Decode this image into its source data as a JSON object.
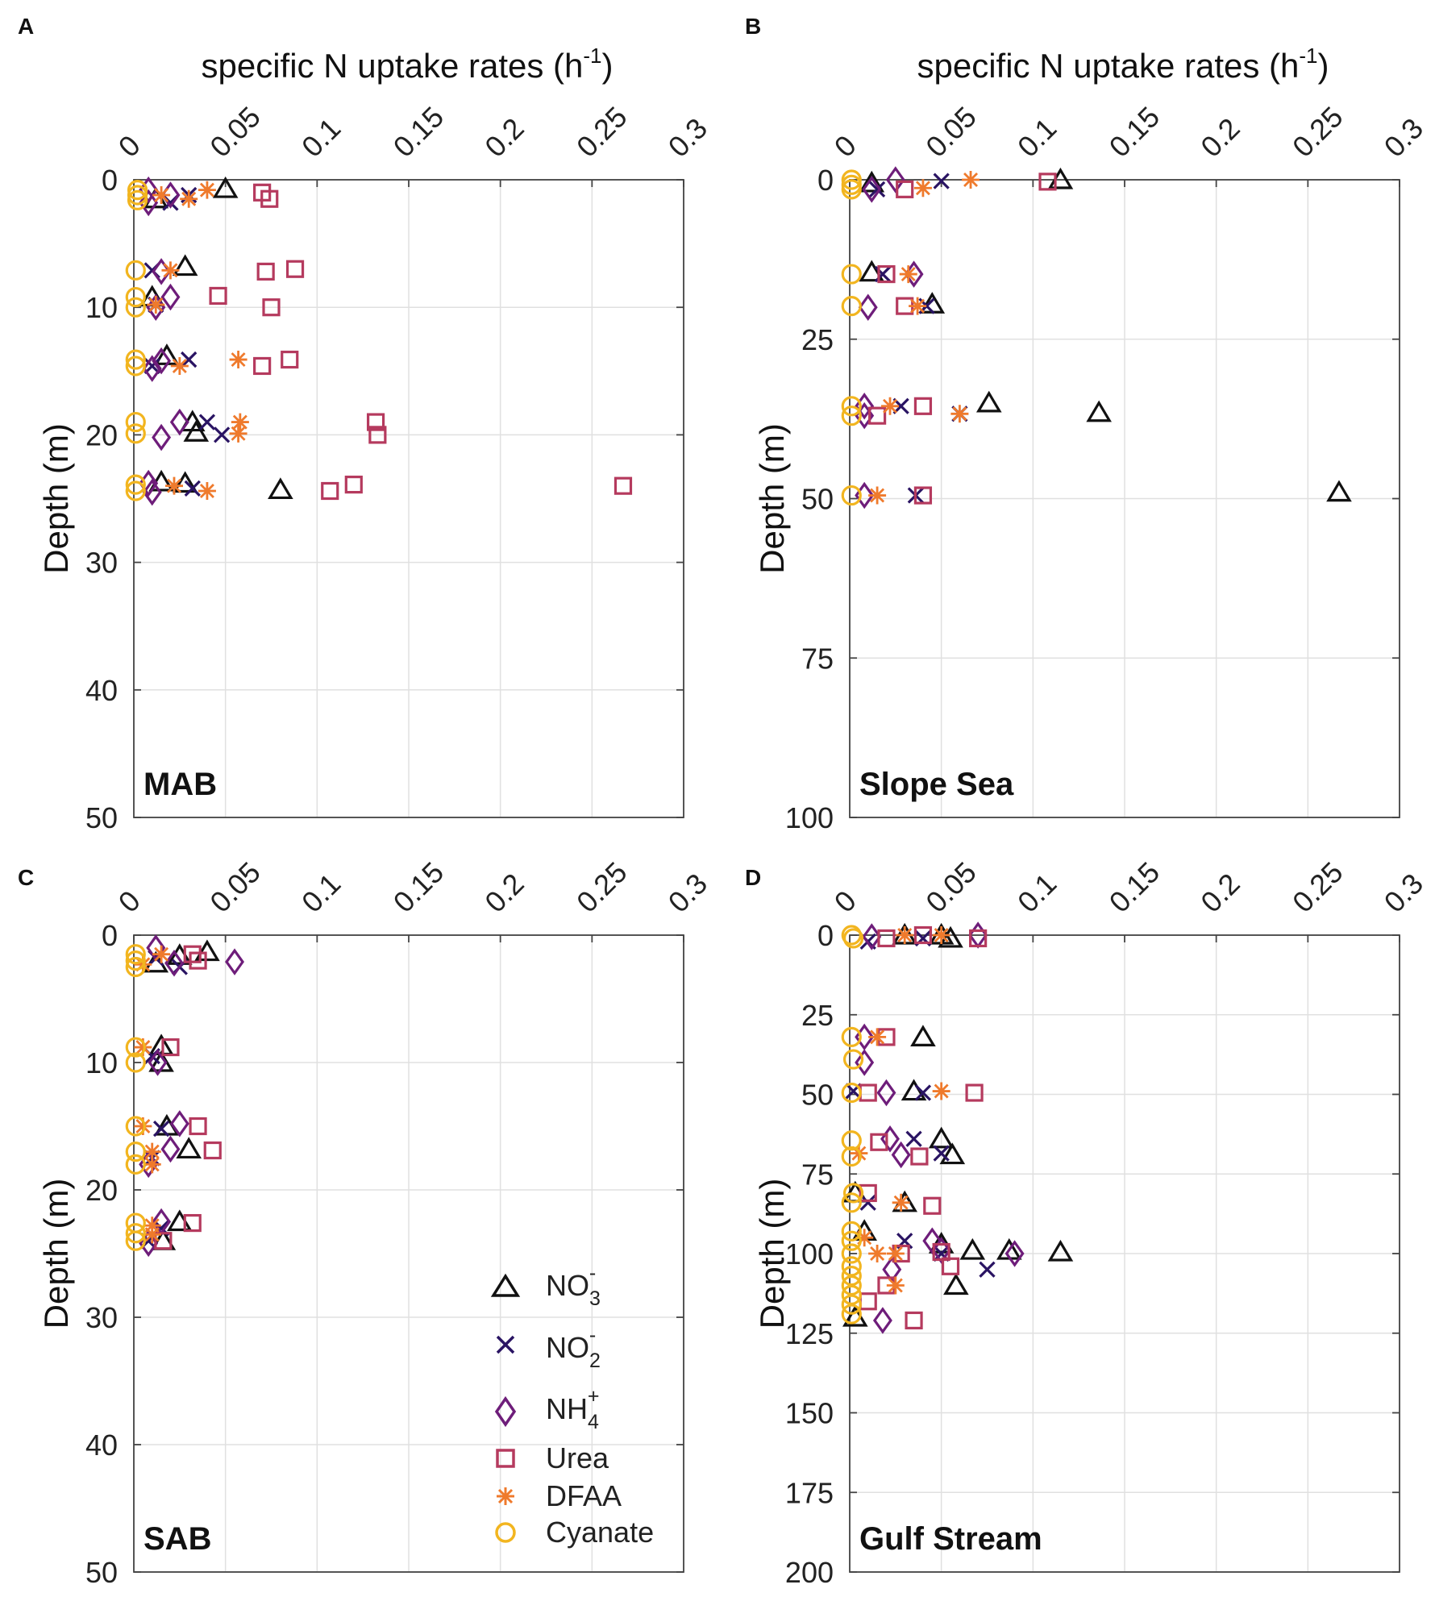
{
  "figure": {
    "x_axis_title": "specific N uptake rates (h",
    "x_axis_sup": "-1",
    "x_axis_close": ")",
    "y_axis_title": "Depth (m)"
  },
  "legend": {
    "items": [
      {
        "key": "no3",
        "base": "NO",
        "sub": "3",
        "sup": "-"
      },
      {
        "key": "no2",
        "base": "NO",
        "sub": "2",
        "sup": "-"
      },
      {
        "key": "nh4",
        "base": "NH",
        "sub": "4",
        "sup": "+"
      },
      {
        "key": "urea",
        "base": "Urea",
        "sub": "",
        "sup": ""
      },
      {
        "key": "dfaa",
        "base": "DFAA",
        "sub": "",
        "sup": ""
      },
      {
        "key": "cyanate",
        "base": "Cyanate",
        "sub": "",
        "sup": ""
      }
    ]
  },
  "colors": {
    "no3": "#111111",
    "no2": "#2a1463",
    "nh4": "#6e1d7a",
    "urea": "#b53a5e",
    "dfaa": "#ef7a2c",
    "cyanate": "#f2b51f",
    "grid": "#e0e0e0",
    "axis": "#444444"
  },
  "chart_data": [
    {
      "panel": "A",
      "region": "MAB",
      "type": "scatter",
      "xlabel": "specific N uptake rates (h-1)",
      "ylabel": "Depth (m)",
      "xlim": [
        0,
        0.3
      ],
      "ylim": [
        0,
        50
      ],
      "xticks": [
        0,
        0.05,
        0.1,
        0.15,
        0.2,
        0.25,
        0.3
      ],
      "xticklabels": [
        "0",
        "0.05",
        "0.1",
        "0.15",
        "0.2",
        "0.25",
        "0.3"
      ],
      "yticks": [
        0,
        10,
        20,
        30,
        40,
        50
      ],
      "yticklabels": [
        "0",
        "10",
        "20",
        "30",
        "40",
        "50"
      ],
      "series": {
        "no3": [
          [
            0.05,
            0.7
          ],
          [
            0.012,
            1.5
          ],
          [
            0.028,
            6.8
          ],
          [
            0.01,
            9.2
          ],
          [
            0.018,
            13.8
          ],
          [
            0.032,
            19
          ],
          [
            0.034,
            19.8
          ],
          [
            0.015,
            23.7
          ],
          [
            0.028,
            23.8
          ],
          [
            0.08,
            24.3
          ]
        ],
        "no2": [
          [
            0.03,
            1.2
          ],
          [
            0.02,
            1.8
          ],
          [
            0.01,
            7.1
          ],
          [
            0.012,
            9.8
          ],
          [
            0.03,
            14.1
          ],
          [
            0.01,
            14.6
          ],
          [
            0.04,
            19
          ],
          [
            0.048,
            20
          ],
          [
            0.032,
            24.2
          ]
        ],
        "nh4": [
          [
            0.008,
            0.8
          ],
          [
            0.02,
            1.2
          ],
          [
            0.008,
            1.8
          ],
          [
            0.015,
            7.2
          ],
          [
            0.02,
            9.2
          ],
          [
            0.012,
            10
          ],
          [
            0.015,
            14.2
          ],
          [
            0.01,
            14.8
          ],
          [
            0.025,
            19
          ],
          [
            0.015,
            20.2
          ],
          [
            0.008,
            23.8
          ],
          [
            0.01,
            24.5
          ]
        ],
        "urea": [
          [
            0.07,
            1
          ],
          [
            0.074,
            1.5
          ],
          [
            0.072,
            7.2
          ],
          [
            0.088,
            7
          ],
          [
            0.046,
            9.1
          ],
          [
            0.075,
            10
          ],
          [
            0.085,
            14.1
          ],
          [
            0.07,
            14.6
          ],
          [
            0.132,
            19
          ],
          [
            0.133,
            20
          ],
          [
            0.12,
            23.9
          ],
          [
            0.107,
            24.4
          ],
          [
            0.267,
            24
          ]
        ],
        "dfaa": [
          [
            0.04,
            0.8
          ],
          [
            0.03,
            1.5
          ],
          [
            0.015,
            1.2
          ],
          [
            0.02,
            7.1
          ],
          [
            0.012,
            9.8
          ],
          [
            0.057,
            14.1
          ],
          [
            0.025,
            14.6
          ],
          [
            0.058,
            19
          ],
          [
            0.057,
            19.9
          ],
          [
            0.022,
            24
          ],
          [
            0.04,
            24.4
          ]
        ],
        "cyanate": [
          [
            0.002,
            0.8
          ],
          [
            0.002,
            1.2
          ],
          [
            0.002,
            1.6
          ],
          [
            0.001,
            7.1
          ],
          [
            0.001,
            9.2
          ],
          [
            0.001,
            10
          ],
          [
            0.001,
            14.1
          ],
          [
            0.001,
            14.6
          ],
          [
            0.001,
            19
          ],
          [
            0.001,
            19.9
          ],
          [
            0.001,
            23.9
          ],
          [
            0.001,
            24.4
          ]
        ]
      }
    },
    {
      "panel": "B",
      "region": "Slope Sea",
      "type": "scatter",
      "xlabel": "specific N uptake rates (h-1)",
      "ylabel": "Depth (m)",
      "xlim": [
        0,
        0.3
      ],
      "ylim": [
        0,
        100
      ],
      "xticks": [
        0,
        0.05,
        0.1,
        0.15,
        0.2,
        0.25,
        0.3
      ],
      "xticklabels": [
        "0",
        "0.05",
        "0.1",
        "0.15",
        "0.2",
        "0.25",
        "0.3"
      ],
      "yticks": [
        0,
        25,
        50,
        75,
        100
      ],
      "yticklabels": [
        "0",
        "25",
        "50",
        "75",
        "100"
      ],
      "series": {
        "no3": [
          [
            0.115,
            0
          ],
          [
            0.012,
            0.5
          ],
          [
            0.012,
            14.5
          ],
          [
            0.045,
            19.5
          ],
          [
            0.076,
            35
          ],
          [
            0.136,
            36.5
          ],
          [
            0.267,
            49
          ]
        ],
        "no2": [
          [
            0.05,
            0.2
          ],
          [
            0.015,
            1.5
          ],
          [
            0.018,
            14.8
          ],
          [
            0.042,
            19.8
          ],
          [
            0.028,
            35.5
          ],
          [
            0.06,
            36.7
          ],
          [
            0.036,
            49.5
          ]
        ],
        "nh4": [
          [
            0.025,
            0
          ],
          [
            0.012,
            1.5
          ],
          [
            0.035,
            14.8
          ],
          [
            0.01,
            20
          ],
          [
            0.008,
            35.5
          ],
          [
            0.008,
            37
          ],
          [
            0.008,
            49.5
          ]
        ],
        "urea": [
          [
            0.108,
            0.3
          ],
          [
            0.03,
            1.5
          ],
          [
            0.02,
            14.8
          ],
          [
            0.03,
            19.8
          ],
          [
            0.04,
            35.5
          ],
          [
            0.015,
            37
          ],
          [
            0.04,
            49.5
          ]
        ],
        "dfaa": [
          [
            0.066,
            0
          ],
          [
            0.04,
            1.3
          ],
          [
            0.032,
            14.8
          ],
          [
            0.037,
            19.8
          ],
          [
            0.022,
            35.5
          ],
          [
            0.06,
            36.7
          ],
          [
            0.015,
            49.5
          ]
        ],
        "cyanate": [
          [
            0.001,
            0
          ],
          [
            0.001,
            0.8
          ],
          [
            0.001,
            1.5
          ],
          [
            0.001,
            14.8
          ],
          [
            0.001,
            19.8
          ],
          [
            0.001,
            35.5
          ],
          [
            0.001,
            37
          ],
          [
            0.001,
            49.5
          ]
        ]
      }
    },
    {
      "panel": "C",
      "region": "SAB",
      "type": "scatter",
      "xlabel": "specific N uptake rates (h-1)",
      "ylabel": "Depth (m)",
      "xlim": [
        0,
        0.3
      ],
      "ylim": [
        0,
        50
      ],
      "xticks": [
        0,
        0.05,
        0.1,
        0.15,
        0.2,
        0.25,
        0.3
      ],
      "xticklabels": [
        "0",
        "0.05",
        "0.1",
        "0.15",
        "0.2",
        "0.25",
        "0.3"
      ],
      "yticks": [
        0,
        10,
        20,
        30,
        40,
        50
      ],
      "yticklabels": [
        "0",
        "10",
        "20",
        "30",
        "40",
        "50"
      ],
      "series": {
        "no3": [
          [
            0.04,
            1.3
          ],
          [
            0.025,
            1.6
          ],
          [
            0.012,
            2.2
          ],
          [
            0.015,
            8.7
          ],
          [
            0.015,
            10
          ],
          [
            0.018,
            15
          ],
          [
            0.03,
            16.8
          ],
          [
            0.025,
            22.5
          ],
          [
            0.016,
            24
          ]
        ],
        "no2": [
          [
            0.025,
            2.5
          ],
          [
            0.012,
            1.8
          ],
          [
            0.01,
            9.5
          ],
          [
            0.015,
            15.2
          ],
          [
            0.01,
            17.5
          ],
          [
            0.015,
            23
          ],
          [
            0.008,
            24
          ]
        ],
        "nh4": [
          [
            0.012,
            1
          ],
          [
            0.055,
            2.1
          ],
          [
            0.022,
            2.2
          ],
          [
            0.013,
            10
          ],
          [
            0.025,
            14.8
          ],
          [
            0.02,
            16.8
          ],
          [
            0.008,
            18
          ],
          [
            0.015,
            22.5
          ],
          [
            0.008,
            24.2
          ]
        ],
        "urea": [
          [
            0.032,
            1.5
          ],
          [
            0.035,
            2
          ],
          [
            0.02,
            8.8
          ],
          [
            0.035,
            15
          ],
          [
            0.043,
            16.9
          ],
          [
            0.032,
            22.6
          ],
          [
            0.016,
            24
          ]
        ],
        "dfaa": [
          [
            0.015,
            1.5
          ],
          [
            0.005,
            2.3
          ],
          [
            0.005,
            8.8
          ],
          [
            0.005,
            15
          ],
          [
            0.01,
            17
          ],
          [
            0.01,
            18
          ],
          [
            0.01,
            22.8
          ],
          [
            0.01,
            23.5
          ]
        ],
        "cyanate": [
          [
            0.001,
            1.5
          ],
          [
            0.001,
            2
          ],
          [
            0.001,
            2.5
          ],
          [
            0.001,
            8.8
          ],
          [
            0.001,
            10
          ],
          [
            0.001,
            15
          ],
          [
            0.001,
            17
          ],
          [
            0.001,
            18
          ],
          [
            0.001,
            22.6
          ],
          [
            0.001,
            23.4
          ],
          [
            0.001,
            24
          ]
        ]
      }
    },
    {
      "panel": "D",
      "region": "Gulf Stream",
      "type": "scatter",
      "xlabel": "specific N uptake rates (h-1)",
      "ylabel": "Depth (m)",
      "xlim": [
        0,
        0.3
      ],
      "ylim": [
        0,
        200
      ],
      "xticks": [
        0,
        0.05,
        0.1,
        0.15,
        0.2,
        0.25,
        0.3
      ],
      "xticklabels": [
        "0",
        "0.05",
        "0.1",
        "0.15",
        "0.2",
        "0.25",
        "0.3"
      ],
      "yticks": [
        0,
        25,
        50,
        75,
        100,
        125,
        150,
        175,
        200
      ],
      "yticklabels": [
        "0",
        "25",
        "50",
        "75",
        "100",
        "125",
        "150",
        "175",
        "200"
      ],
      "series": {
        "no3": [
          [
            0.05,
            0
          ],
          [
            0.055,
            1
          ],
          [
            0.03,
            0
          ],
          [
            0.04,
            32
          ],
          [
            0.035,
            49
          ],
          [
            0.05,
            64
          ],
          [
            0.056,
            69
          ],
          [
            0.003,
            81
          ],
          [
            0.03,
            84
          ],
          [
            0.008,
            93
          ],
          [
            0.05,
            97
          ],
          [
            0.067,
            99
          ],
          [
            0.087,
            99
          ],
          [
            0.115,
            99.5
          ],
          [
            0.058,
            110
          ],
          [
            0.003,
            120
          ]
        ],
        "no2": [
          [
            0.04,
            1
          ],
          [
            0.01,
            2
          ],
          [
            0.002,
            49
          ],
          [
            0.04,
            49.5
          ],
          [
            0.035,
            64
          ],
          [
            0.05,
            68.5
          ],
          [
            0.01,
            84
          ],
          [
            0.03,
            96
          ],
          [
            0.05,
            100
          ],
          [
            0.075,
            105
          ]
        ],
        "nh4": [
          [
            0.012,
            0.5
          ],
          [
            0.07,
            0
          ],
          [
            0.008,
            32
          ],
          [
            0.008,
            40
          ],
          [
            0.02,
            49.5
          ],
          [
            0.022,
            64
          ],
          [
            0.028,
            69
          ],
          [
            0.045,
            96
          ],
          [
            0.05,
            99
          ],
          [
            0.09,
            100
          ],
          [
            0.023,
            105
          ],
          [
            0.018,
            121
          ]
        ],
        "urea": [
          [
            0.02,
            1
          ],
          [
            0.04,
            0
          ],
          [
            0.07,
            1
          ],
          [
            0.02,
            32
          ],
          [
            0.01,
            49.5
          ],
          [
            0.068,
            49.5
          ],
          [
            0.016,
            65
          ],
          [
            0.038,
            69.5
          ],
          [
            0.045,
            85
          ],
          [
            0.01,
            81
          ],
          [
            0.028,
            100
          ],
          [
            0.05,
            99.5
          ],
          [
            0.055,
            104
          ],
          [
            0.02,
            110
          ],
          [
            0.035,
            121
          ],
          [
            0.01,
            115
          ]
        ],
        "dfaa": [
          [
            0.03,
            0
          ],
          [
            0.05,
            0
          ],
          [
            0.015,
            32
          ],
          [
            0.05,
            49
          ],
          [
            0.005,
            68.5
          ],
          [
            0.028,
            84
          ],
          [
            0.025,
            100
          ],
          [
            0.015,
            100
          ],
          [
            0.025,
            110
          ],
          [
            0.008,
            95
          ]
        ],
        "cyanate": [
          [
            0.001,
            0
          ],
          [
            0.002,
            1
          ],
          [
            0.001,
            32
          ],
          [
            0.002,
            39
          ],
          [
            0.001,
            49.5
          ],
          [
            0.001,
            64.5
          ],
          [
            0.001,
            69.5
          ],
          [
            0.002,
            81
          ],
          [
            0.001,
            84
          ],
          [
            0.001,
            93
          ],
          [
            0.001,
            96
          ],
          [
            0.001,
            100
          ],
          [
            0.001,
            104
          ],
          [
            0.001,
            107
          ],
          [
            0.001,
            110
          ],
          [
            0.001,
            113
          ],
          [
            0.001,
            116
          ],
          [
            0.001,
            119
          ]
        ]
      }
    }
  ]
}
